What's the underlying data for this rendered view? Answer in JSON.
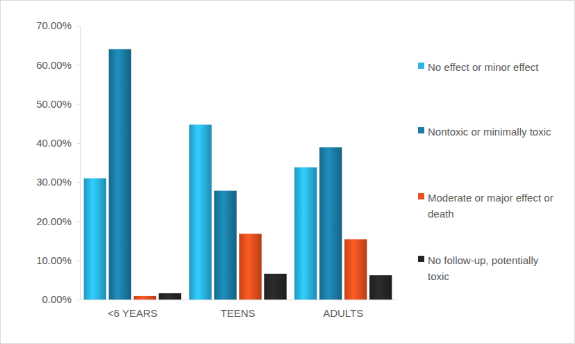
{
  "chart_data": {
    "type": "bar",
    "categories": [
      "<6 YEARS",
      "TEENS",
      "ADULTS"
    ],
    "series": [
      {
        "name": "No effect or minor effect",
        "color": "#2ab4e6",
        "values": [
          31,
          44.7,
          33.8
        ]
      },
      {
        "name": "Nontoxic or minimally toxic",
        "color": "#1b7ca6",
        "values": [
          64,
          27.8,
          38.9
        ]
      },
      {
        "name": "Moderate or major effect or death",
        "color": "#e8501f",
        "values": [
          0.9,
          16.8,
          15.4
        ]
      },
      {
        "name": "No follow-up, potentially toxic",
        "color": "#262626",
        "values": [
          1.6,
          6.6,
          6.2
        ]
      }
    ],
    "ylim": [
      0,
      70
    ],
    "yticks": [
      {
        "value": 0,
        "label": "0.00%"
      },
      {
        "value": 10,
        "label": "10.00%"
      },
      {
        "value": 20,
        "label": "20.00%"
      },
      {
        "value": 30,
        "label": "30.00%"
      },
      {
        "value": 40,
        "label": "40.00%"
      },
      {
        "value": 50,
        "label": "50.00%"
      },
      {
        "value": 60,
        "label": "60.00%"
      },
      {
        "value": 70,
        "label": "70.00%"
      }
    ],
    "grid": false,
    "legend": "right"
  }
}
